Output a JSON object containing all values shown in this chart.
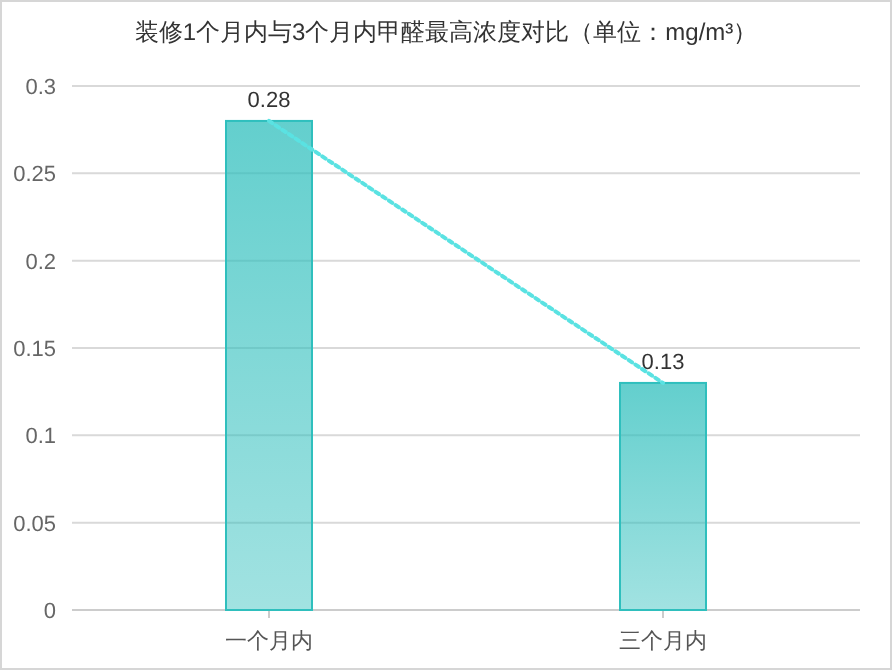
{
  "chart_data": {
    "type": "bar",
    "title": "装修1个月内与3个月内甲醛最高浓度对比（单位：mg/m³）",
    "categories": [
      "一个月内",
      "三个月内"
    ],
    "series": [
      {
        "color": "#2fbfbd",
        "values": [
          0.28,
          0.13
        ],
        "value_labels": [
          "0.28",
          "0.13"
        ]
      },
      {
        "type": "line",
        "color": "#5ae2e2",
        "values": [
          0.28,
          0.13
        ],
        "line_style": "dotted",
        "marker": "none"
      }
    ],
    "ylim": [
      0,
      0.3
    ],
    "yticks": [
      0,
      0.05,
      0.1,
      0.15,
      0.2,
      0.25,
      0.3
    ],
    "grid": "y"
  }
}
